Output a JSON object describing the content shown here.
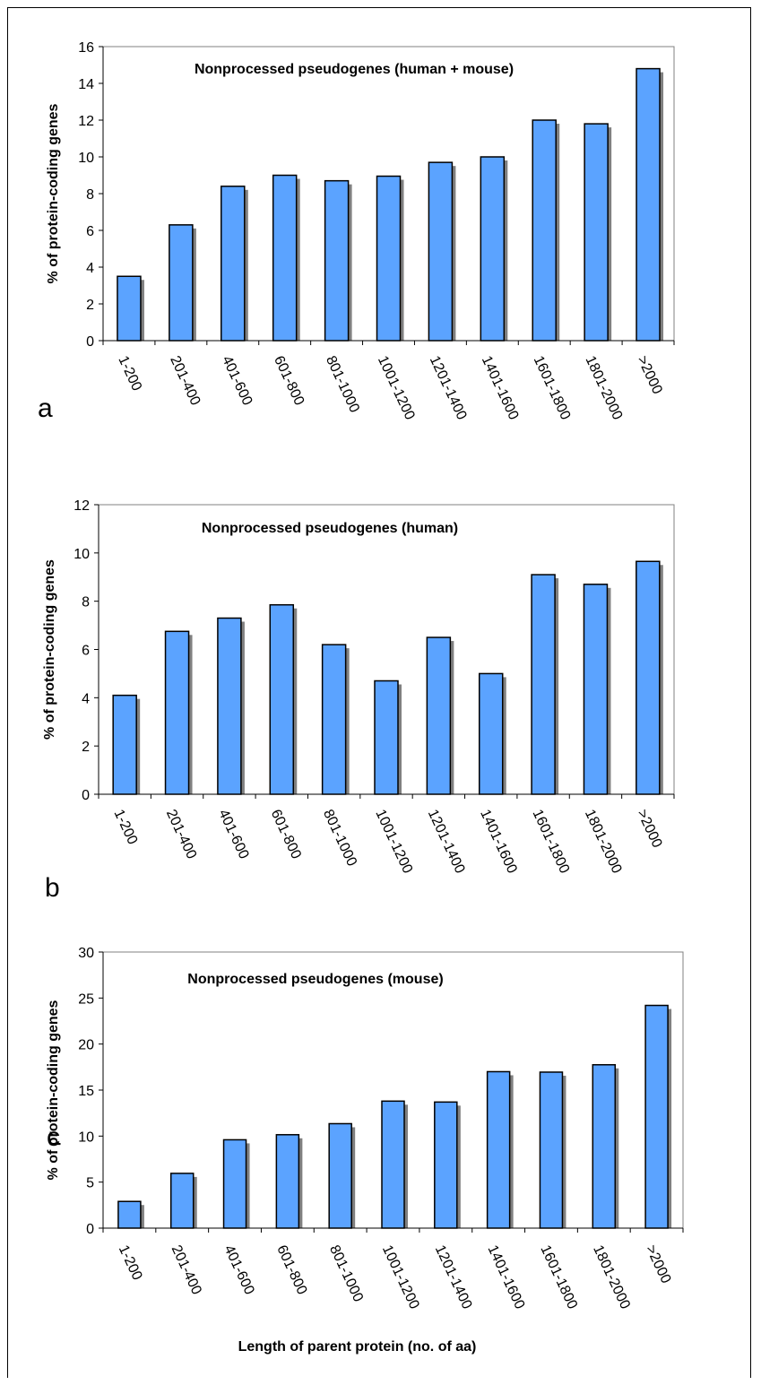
{
  "colors": {
    "bar": "#5ba3ff",
    "bar_shadow": "#808080",
    "axis": "#000000",
    "text": "#000000"
  },
  "chart_data": [
    {
      "type": "bar",
      "panel_label": "a",
      "title": "Nonprocessed pseudogenes (human + mouse)",
      "ylabel": "% of protein-coding genes",
      "xlabel": "",
      "ylim": [
        0,
        16
      ],
      "yticks": [
        0,
        2,
        4,
        6,
        8,
        10,
        12,
        14,
        16
      ],
      "grid": false,
      "categories": [
        "1-200",
        "201-400",
        "401-600",
        "601-800",
        "801-1000",
        "1001-1200",
        "1201-1400",
        "1401-1600",
        "1601-1800",
        "1801-2000",
        ">2000"
      ],
      "values": [
        3.5,
        6.3,
        8.4,
        9.0,
        8.7,
        8.95,
        9.7,
        10.0,
        12.0,
        11.8,
        14.8
      ]
    },
    {
      "type": "bar",
      "panel_label": "b",
      "title": "Nonprocessed pseudogenes (human)",
      "ylabel": "% of protein-coding genes",
      "xlabel": "",
      "ylim": [
        0,
        12
      ],
      "yticks": [
        0,
        2,
        4,
        6,
        8,
        10,
        12
      ],
      "grid": false,
      "categories": [
        "1-200",
        "201-400",
        "401-600",
        "601-800",
        "801-1000",
        "1001-1200",
        "1201-1400",
        "1401-1600",
        "1601-1800",
        "1801-2000",
        ">2000"
      ],
      "values": [
        4.1,
        6.75,
        7.3,
        7.85,
        6.2,
        4.7,
        6.5,
        5.0,
        9.1,
        8.7,
        9.65
      ]
    },
    {
      "type": "bar",
      "panel_label": "c",
      "title": "Nonprocessed pseudogenes (mouse)",
      "ylabel": "% of protein-coding genes",
      "xlabel": "Length of parent protein (no. of aa)",
      "ylim": [
        0,
        30
      ],
      "yticks": [
        0,
        5,
        10,
        15,
        20,
        25,
        30
      ],
      "grid": false,
      "categories": [
        "1-200",
        "201-400",
        "401-600",
        "601-800",
        "801-1000",
        "1001-1200",
        "1201-1400",
        "1401-1600",
        "1601-1800",
        "1801-2000",
        ">2000"
      ],
      "values": [
        2.9,
        5.95,
        9.6,
        10.15,
        11.35,
        13.8,
        13.7,
        17.0,
        16.95,
        17.75,
        24.2
      ]
    }
  ]
}
